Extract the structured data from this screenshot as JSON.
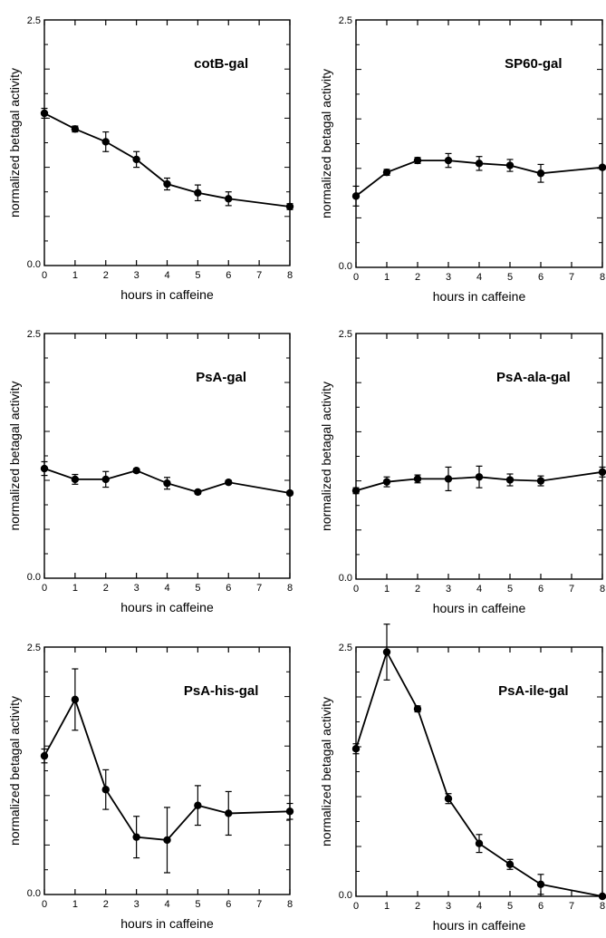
{
  "chart_data": [
    {
      "type": "line",
      "title": "cotB-gal",
      "xlabel": "hours in caffeine",
      "ylabel": "normalized betagal activity",
      "xlim": [
        0,
        8
      ],
      "ylim": [
        0,
        2.5
      ],
      "x_ticks": [
        "0",
        "1",
        "2",
        "3",
        "4",
        "5",
        "6",
        "7",
        "8"
      ],
      "y_ticks": [
        "0.0",
        "2.5"
      ],
      "series": [
        {
          "x": [
            0,
            1,
            2,
            3,
            4,
            5,
            6,
            8
          ],
          "y": [
            1.55,
            1.39,
            1.26,
            1.08,
            0.83,
            0.74,
            0.68,
            0.6
          ],
          "error": [
            0.05,
            0.03,
            0.1,
            0.08,
            0.06,
            0.08,
            0.07,
            0.03
          ]
        }
      ]
    },
    {
      "type": "line",
      "title": "SP60-gal",
      "xlabel": "hours in caffeine",
      "ylabel": "normalized betagal activity",
      "xlim": [
        0,
        8
      ],
      "ylim": [
        0,
        2.5
      ],
      "x_ticks": [
        "0",
        "1",
        "2",
        "3",
        "4",
        "5",
        "6",
        "7",
        "8"
      ],
      "y_ticks": [
        "0.0",
        "2.5"
      ],
      "series": [
        {
          "x": [
            0,
            1,
            2,
            3,
            4,
            5,
            6,
            8
          ],
          "y": [
            0.72,
            0.96,
            1.08,
            1.08,
            1.05,
            1.03,
            0.95,
            1.01
          ],
          "error": [
            0.1,
            0.03,
            0.03,
            0.07,
            0.07,
            0.06,
            0.09,
            0.02
          ]
        }
      ]
    },
    {
      "type": "line",
      "title": "PsA-gal",
      "xlabel": "hours in caffeine",
      "ylabel": "normalized betagal activity",
      "xlim": [
        0,
        8
      ],
      "ylim": [
        0,
        2.5
      ],
      "x_ticks": [
        "0",
        "1",
        "2",
        "3",
        "4",
        "5",
        "6",
        "7",
        "8"
      ],
      "y_ticks": [
        "0.0",
        "2.5"
      ],
      "series": [
        {
          "x": [
            0,
            1,
            2,
            3,
            4,
            5,
            6,
            8
          ],
          "y": [
            1.12,
            1.01,
            1.01,
            1.1,
            0.97,
            0.88,
            0.98,
            0.87
          ],
          "error": [
            0.07,
            0.05,
            0.08,
            0.02,
            0.06,
            0.02,
            0.02,
            0.02
          ]
        }
      ]
    },
    {
      "type": "line",
      "title": "PsA-ala-gal",
      "xlabel": "hours in caffeine",
      "ylabel": "normalized betagal activity",
      "xlim": [
        0,
        8
      ],
      "ylim": [
        0,
        2.5
      ],
      "x_ticks": [
        "0",
        "1",
        "2",
        "3",
        "4",
        "5",
        "6",
        "7",
        "8"
      ],
      "y_ticks": [
        "0.0",
        "2.5"
      ],
      "series": [
        {
          "x": [
            0,
            1,
            2,
            3,
            4,
            5,
            6,
            8
          ],
          "y": [
            0.9,
            0.99,
            1.02,
            1.02,
            1.04,
            1.01,
            1.0,
            1.09
          ],
          "error": [
            0.03,
            0.05,
            0.04,
            0.12,
            0.11,
            0.06,
            0.05,
            0.05
          ]
        }
      ]
    },
    {
      "type": "line",
      "title": "PsA-his-gal",
      "xlabel": "hours in caffeine",
      "ylabel": "normalized betagal activity",
      "xlim": [
        0,
        8
      ],
      "ylim": [
        0,
        2.5
      ],
      "x_ticks": [
        "0",
        "1",
        "2",
        "3",
        "4",
        "5",
        "6",
        "7",
        "8"
      ],
      "y_ticks": [
        "0.0",
        "2.5"
      ],
      "series": [
        {
          "x": [
            0,
            1,
            2,
            3,
            4,
            5,
            6,
            8
          ],
          "y": [
            1.4,
            1.97,
            1.06,
            0.58,
            0.55,
            0.9,
            0.82,
            0.84
          ],
          "error": [
            0.07,
            0.31,
            0.2,
            0.21,
            0.33,
            0.2,
            0.22,
            0.08
          ]
        }
      ]
    },
    {
      "type": "line",
      "title": "PsA-ile-gal",
      "xlabel": "hours in caffeine",
      "ylabel": "normalized betagal activity",
      "xlim": [
        0,
        8
      ],
      "ylim": [
        0,
        2.5
      ],
      "x_ticks": [
        "0",
        "1",
        "2",
        "3",
        "4",
        "5",
        "6",
        "7",
        "8"
      ],
      "y_ticks": [
        "0.0",
        "2.5"
      ],
      "series": [
        {
          "x": [
            0,
            1,
            2,
            3,
            4,
            5,
            6,
            8
          ],
          "y": [
            1.48,
            2.45,
            1.88,
            0.98,
            0.53,
            0.32,
            0.12,
            0.0
          ],
          "error": [
            0.05,
            0.28,
            0.03,
            0.05,
            0.09,
            0.05,
            0.1,
            0.01
          ]
        }
      ]
    }
  ]
}
